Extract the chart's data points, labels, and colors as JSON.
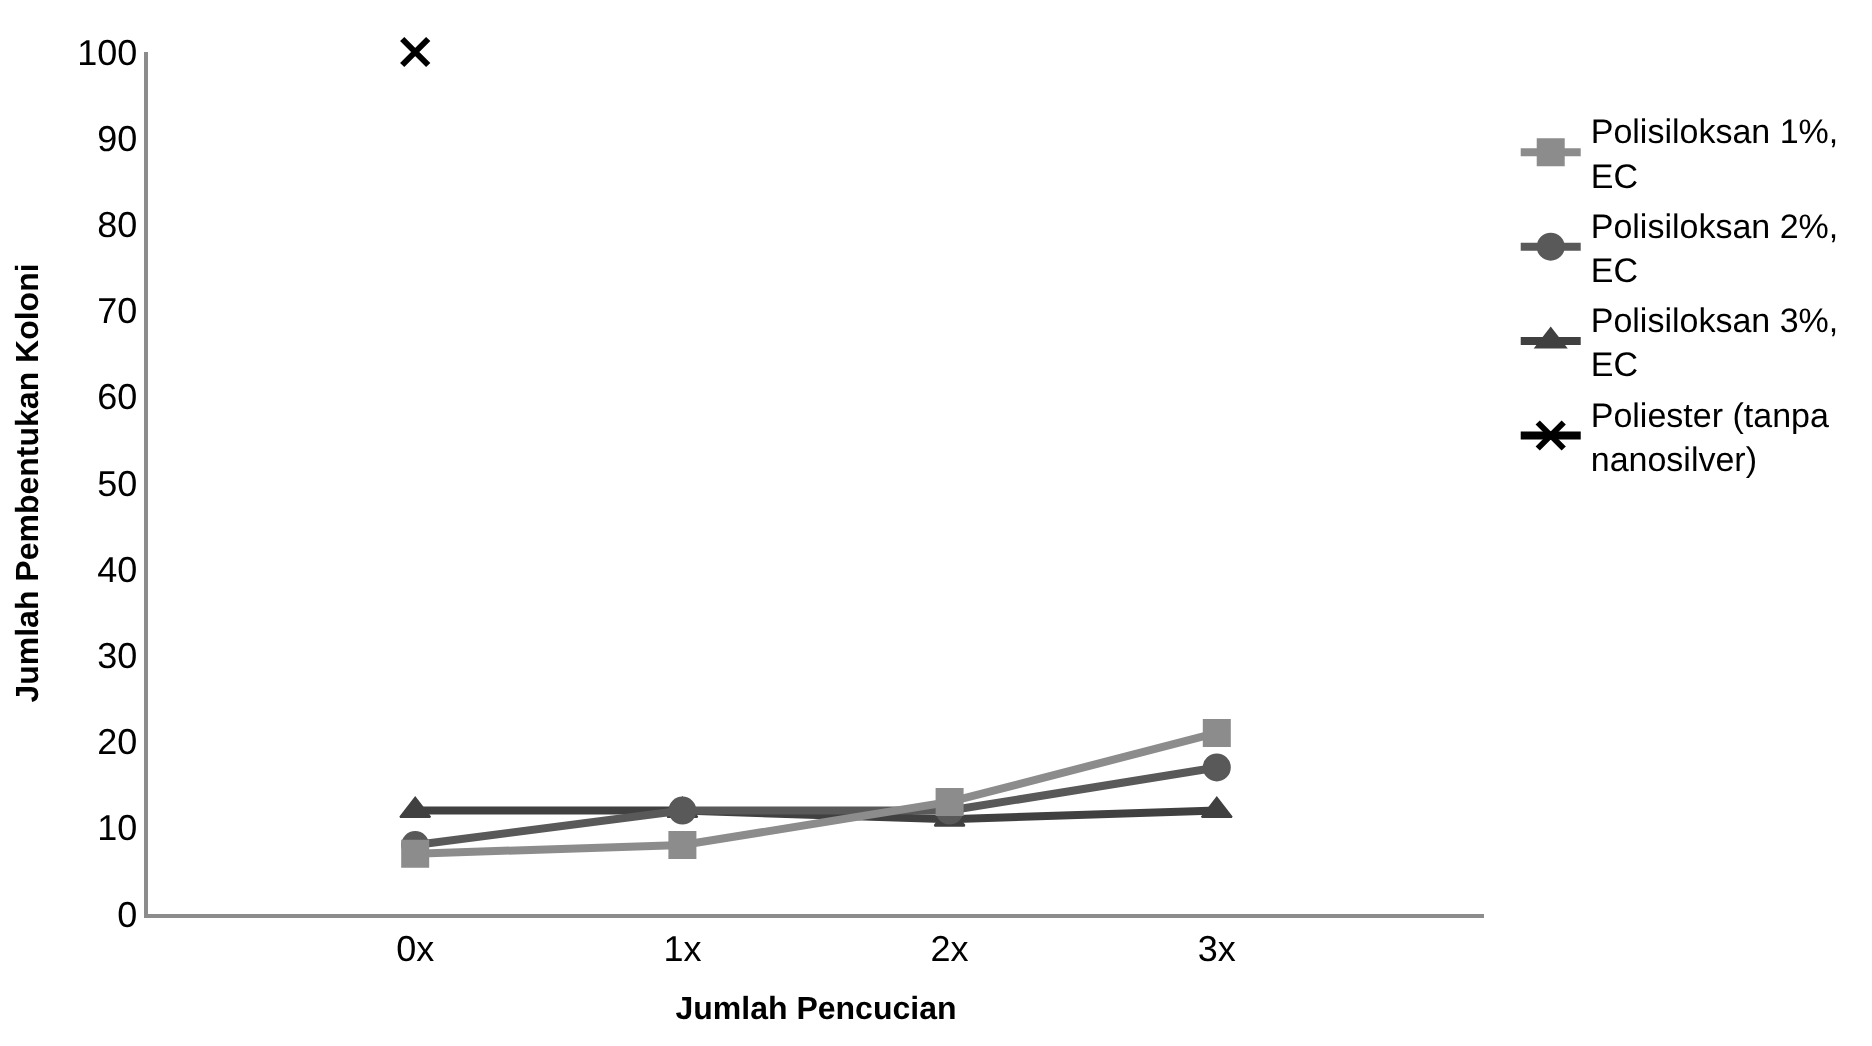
{
  "chart_data": {
    "type": "line",
    "xlabel": "Jumlah Pencucian",
    "ylabel": "Jumlah Pembentukan Koloni",
    "categories": [
      null,
      "0x",
      "1x",
      "2x",
      "3x",
      null
    ],
    "series": [
      {
        "name": "Polisiloksan 1%,\nEC",
        "color": "#8c8c8c",
        "marker": "square",
        "values": [
          null,
          7,
          8,
          13,
          21,
          null
        ]
      },
      {
        "name": "Polisiloksan 2%,\nEC",
        "color": "#595959",
        "marker": "circle",
        "values": [
          null,
          8,
          12,
          12,
          17,
          null
        ]
      },
      {
        "name": "Polisiloksan 3%,\nEC",
        "color": "#404040",
        "marker": "triangle",
        "values": [
          null,
          12,
          12,
          11,
          12,
          null
        ]
      },
      {
        "name": "Poliester (tanpa\nnanosilver)",
        "color": "#000000",
        "marker": "cross",
        "values": [
          null,
          100,
          null,
          null,
          null,
          null
        ]
      }
    ],
    "ylim": [
      0,
      100
    ],
    "yticks": [
      0,
      10,
      20,
      30,
      40,
      50,
      60,
      70,
      80,
      90,
      100
    ],
    "grid": false,
    "legend": "right"
  }
}
